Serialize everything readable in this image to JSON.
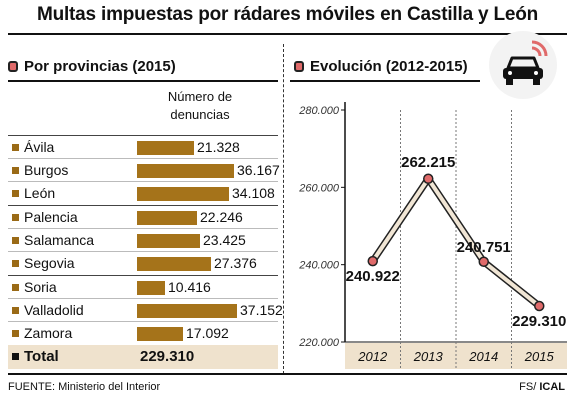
{
  "title": "Multas impuestas por rádares móviles en Castilla y León",
  "left_section": {
    "heading": "Por provincias (2015)",
    "column_header_line1": "Número de",
    "column_header_line2": "denuncias",
    "rows": [
      {
        "label": "Ávila",
        "value_text": "21.328",
        "value": 21328
      },
      {
        "label": "Burgos",
        "value_text": "36.167",
        "value": 36167
      },
      {
        "label": "León",
        "value_text": "34.108",
        "value": 34108
      },
      {
        "label": "Palencia",
        "value_text": "22.246",
        "value": 22246
      },
      {
        "label": "Salamanca",
        "value_text": "23.425",
        "value": 23425
      },
      {
        "label": "Segovia",
        "value_text": "27.376",
        "value": 27376
      },
      {
        "label": "Soria",
        "value_text": "10.416",
        "value": 10416
      },
      {
        "label": "Valladolid",
        "value_text": "37.152",
        "value": 37152
      },
      {
        "label": "Zamora",
        "value_text": "17.092",
        "value": 17092
      }
    ],
    "total_label": "Total",
    "total_value": "229.310"
  },
  "right_section": {
    "heading": "Evolución (2012-2015)"
  },
  "source": "FUENTE: Ministerio del Interior",
  "credit_prefix": "FS/ ",
  "credit_brand": "ICAL",
  "colors": {
    "bar": "#a5731a",
    "marker_fill": "#e06a6a",
    "line_fill": "#f1e6d5",
    "point_fill": "#e06a6a",
    "year_band": "#efe2cd"
  },
  "icons": {
    "heading_marker": "square-marker-icon",
    "corner": "car-radar-icon"
  },
  "chart_data": [
    {
      "type": "bar",
      "orientation": "horizontal",
      "title": "Por provincias (2015)",
      "ylabel": "Número de denuncias",
      "categories": [
        "Ávila",
        "Burgos",
        "León",
        "Palencia",
        "Salamanca",
        "Segovia",
        "Soria",
        "Valladolid",
        "Zamora"
      ],
      "values": [
        21328,
        36167,
        34108,
        22246,
        23425,
        27376,
        10416,
        37152,
        17092
      ],
      "total": 229310
    },
    {
      "type": "line",
      "title": "Evolución (2012-2015)",
      "categories": [
        "2012",
        "2013",
        "2014",
        "2015"
      ],
      "values": [
        240922,
        262215,
        240751,
        229310
      ],
      "labels": [
        "240.922",
        "262.215",
        "240.751",
        "229.310"
      ],
      "yticks": [
        "220.000",
        "240.000",
        "260.000",
        "280.000"
      ],
      "ylim": [
        220000,
        280000
      ],
      "grid": false
    }
  ]
}
